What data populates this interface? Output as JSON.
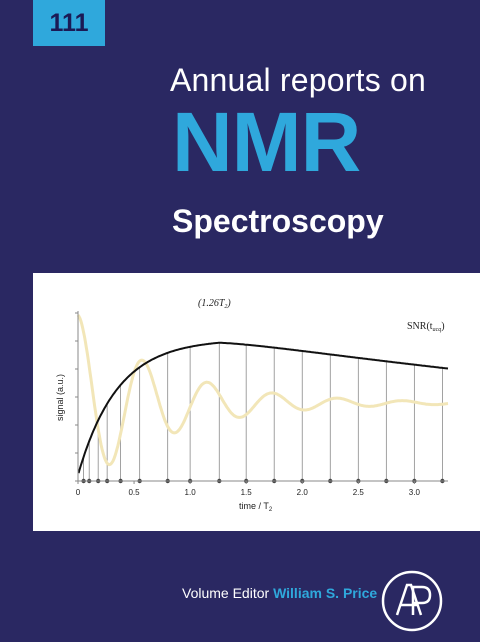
{
  "cover": {
    "volume_number": "111",
    "title_line1": "Annual reports on",
    "title_line2": "NMR",
    "title_line3": "Spectroscopy",
    "editor_prefix": "Volume Editor",
    "editor_name": "William S. Price",
    "logo_icon": "elsevier-ap-logo-icon",
    "colors": {
      "background": "#2a2862",
      "accent": "#2fa8dc",
      "panel": "#ffffff"
    }
  },
  "figure": {
    "ylabel": "signal (a.u.)",
    "xlabel": "time / T",
    "xlabel_sub": "2",
    "peak_label": "(1.26T",
    "peak_label_sub": "2",
    "peak_label_end": ")",
    "curve_label": "SNR(t",
    "curve_label_sub": "acq",
    "curve_label_end": ")",
    "xticks": [
      "0",
      "0.5",
      "1.0",
      "1.5",
      "2.0",
      "2.5",
      "3.0"
    ]
  },
  "chart_data": {
    "type": "line",
    "x_range": [
      0,
      3.3
    ],
    "tick_values": [
      0,
      0.5,
      1.0,
      1.5,
      2.0,
      2.5,
      3.0
    ],
    "acquisition_markers": [
      0.05,
      0.1,
      0.18,
      0.26,
      0.38,
      0.55,
      0.8,
      1.0,
      1.26,
      1.5,
      1.75,
      2.0,
      2.25,
      2.5,
      2.75,
      3.0,
      3.25
    ],
    "series": [
      {
        "name": "SNR(t_acq)",
        "color": "#111111"
      }
    ],
    "peak_x": 1.26,
    "grid": false
  }
}
